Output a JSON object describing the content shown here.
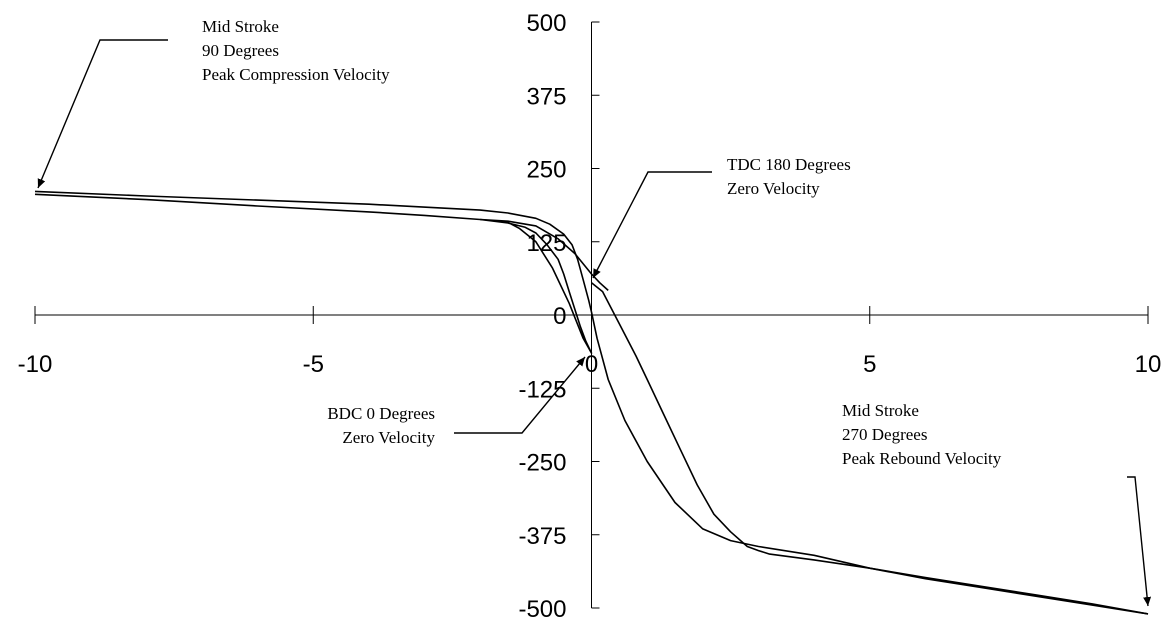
{
  "chart_data": {
    "type": "line",
    "title": "",
    "xlabel": "",
    "ylabel": "",
    "xlim": [
      -10,
      10
    ],
    "ylim": [
      -500,
      500
    ],
    "x_ticks": [
      -10,
      -5,
      0,
      5,
      10
    ],
    "y_ticks": [
      500,
      375,
      250,
      125,
      0,
      -125,
      -250,
      -375,
      -500
    ],
    "grid": false,
    "series": [
      {
        "points": [
          [
            -10,
            211
          ],
          [
            -8,
            203
          ],
          [
            -6,
            196
          ],
          [
            -4,
            189
          ],
          [
            -2,
            179
          ],
          [
            -1.5,
            174
          ],
          [
            -1,
            165
          ],
          [
            -0.75,
            155
          ],
          [
            -0.5,
            138
          ],
          [
            -0.35,
            120
          ],
          [
            -0.25,
            95
          ],
          [
            -0.15,
            60
          ],
          [
            -0.05,
            25
          ],
          [
            0,
            5
          ],
          [
            0.1,
            -40
          ],
          [
            0.3,
            -110
          ],
          [
            0.6,
            -180
          ],
          [
            1,
            -250
          ],
          [
            1.5,
            -320
          ],
          [
            2,
            -365
          ],
          [
            2.5,
            -385
          ],
          [
            3,
            -395
          ],
          [
            4,
            -410
          ],
          [
            5,
            -432
          ],
          [
            6,
            -450
          ],
          [
            7,
            -465
          ],
          [
            8,
            -480
          ],
          [
            9,
            -495
          ],
          [
            10,
            -510
          ]
        ]
      },
      {
        "points": [
          [
            -10,
            206
          ],
          [
            -8,
            197
          ],
          [
            -6,
            186
          ],
          [
            -4,
            176
          ],
          [
            -3,
            170
          ],
          [
            -2,
            163
          ],
          [
            -1.5,
            157
          ],
          [
            -1.2,
            150
          ],
          [
            -1,
            140
          ],
          [
            -0.8,
            120
          ],
          [
            -0.6,
            95
          ],
          [
            -0.5,
            70
          ],
          [
            -0.4,
            40
          ],
          [
            -0.3,
            10
          ],
          [
            -0.2,
            -20
          ],
          [
            -0.1,
            -45
          ],
          [
            0,
            -65
          ],
          [
            -0.15,
            -40
          ],
          [
            -0.4,
            20
          ],
          [
            -0.7,
            80
          ],
          [
            -1,
            125
          ],
          [
            -1.3,
            148
          ],
          [
            -1.5,
            158
          ],
          [
            -2,
            163
          ]
        ]
      },
      {
        "points": [
          [
            0,
            55
          ],
          [
            0.2,
            40
          ],
          [
            0.5,
            -15
          ],
          [
            0.8,
            -70
          ],
          [
            1,
            -110
          ],
          [
            1.3,
            -170
          ],
          [
            1.6,
            -230
          ],
          [
            1.9,
            -290
          ],
          [
            2.2,
            -340
          ],
          [
            2.5,
            -370
          ],
          [
            2.8,
            -395
          ],
          [
            3,
            -402
          ],
          [
            3.2,
            -408
          ],
          [
            4,
            -418
          ],
          [
            5,
            -432
          ],
          [
            6,
            -448
          ],
          [
            7,
            -463
          ],
          [
            8,
            -478
          ],
          [
            9,
            -493
          ],
          [
            10,
            -510
          ]
        ]
      },
      {
        "points": [
          [
            -2,
            163
          ],
          [
            -1.5,
            160
          ],
          [
            -1,
            152
          ],
          [
            -0.6,
            130
          ],
          [
            -0.3,
            105
          ],
          [
            0,
            70
          ],
          [
            0.15,
            55
          ],
          [
            0.3,
            42
          ]
        ]
      }
    ],
    "annotations": [
      {
        "lines": [
          "Mid Stroke",
          "90 Degrees",
          "Peak Compression Velocity"
        ]
      },
      {
        "lines": [
          "TDC 180 Degrees",
          "Zero Velocity"
        ]
      },
      {
        "lines": [
          "BDC 0 Degrees",
          "Zero Velocity"
        ]
      },
      {
        "lines": [
          "Mid Stroke",
          "270 Degrees",
          "Peak Rebound Velocity"
        ]
      }
    ]
  }
}
